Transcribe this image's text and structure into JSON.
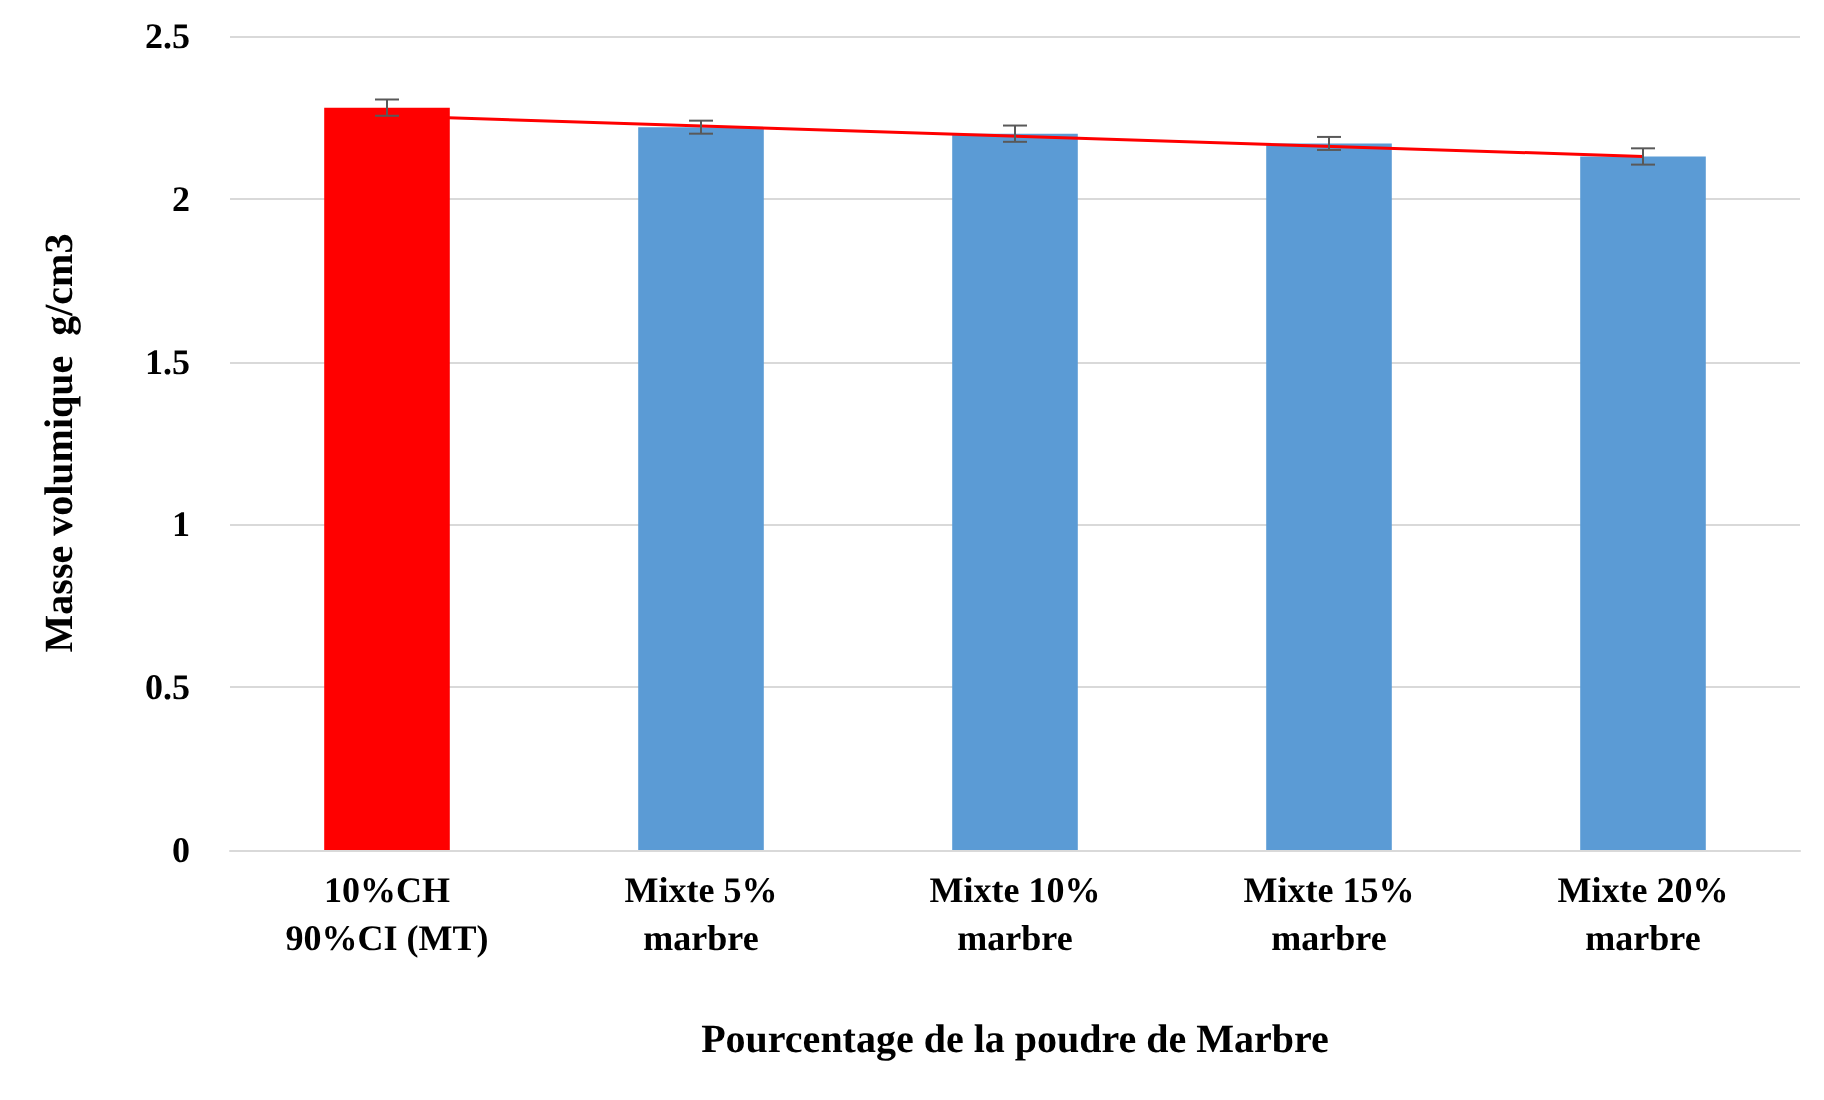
{
  "chart_data": {
    "type": "bar",
    "xlabel": "Pourcentage de la poudre de Marbre",
    "ylabel": "Masse volumique  g/cm3",
    "categories": [
      "10%CH\n90%CI (MT)",
      "Mixte 5%\nmarbre",
      "Mixte 10%\nmarbre",
      "Mixte 15%\nmarbre",
      "Mixte 20%\nmarbre"
    ],
    "series": [
      {
        "colors": [
          "#ff0000",
          "#5b9bd5",
          "#5b9bd5",
          "#5b9bd5",
          "#5b9bd5"
        ],
        "values": [
          2.28,
          2.22,
          2.2,
          2.17,
          2.13
        ],
        "errors": [
          0.025,
          0.02,
          0.025,
          0.02,
          0.025
        ]
      },
      {
        "type": "line",
        "color": "#ff0000",
        "x": [
          "10%CH\n90%CI (MT)",
          "Mixte 20%\nmarbre"
        ],
        "values": [
          2.255,
          2.13
        ],
        "marker": "none"
      }
    ],
    "ylim": [
      0,
      2.5
    ],
    "yticks": [
      0,
      0.5,
      1,
      1.5,
      2,
      2.5
    ],
    "grid": "y"
  }
}
